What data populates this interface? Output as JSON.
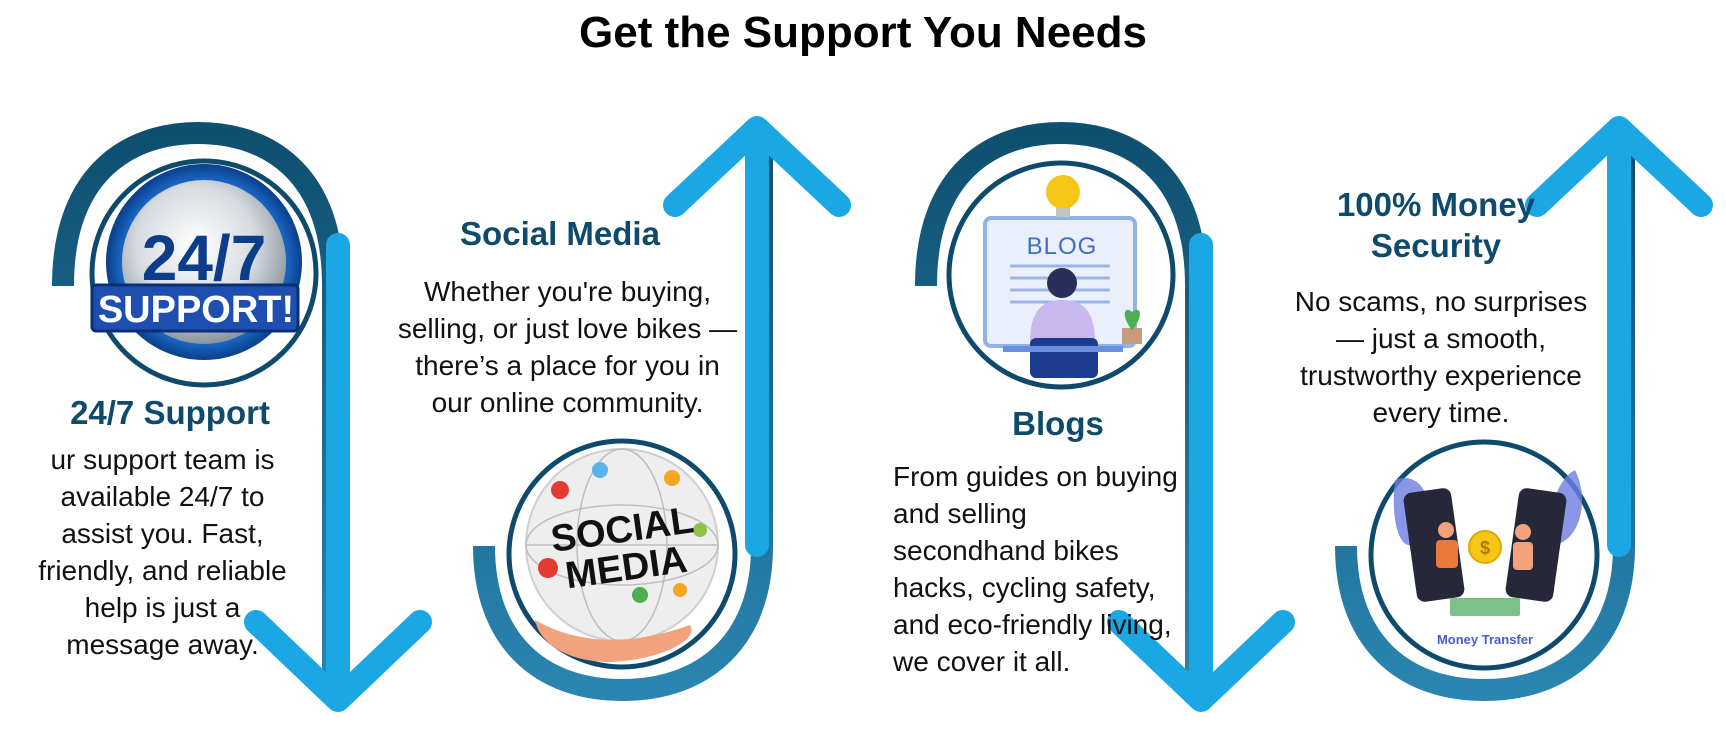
{
  "title": "Get the Support You Needs",
  "colors": {
    "dark_teal": "#175a80",
    "arrow_blue": "#1ba6e4",
    "heading": "#0e4a6c"
  },
  "features": [
    {
      "heading": "24/7 Support",
      "description": "ur support team is available 24/7 to assist you. Fast, friendly, and reliable help is just a message away.",
      "image": {
        "name": "support-24-7-badge",
        "lines": [
          "24/7",
          "SUPPORT!"
        ]
      }
    },
    {
      "heading": "Social Media",
      "description": "Whether you're buying, selling, or just love bikes — there’s a place for you in our online community.",
      "image": {
        "name": "social-media-globe",
        "lines": [
          "SOCIAL",
          "MEDIA"
        ]
      }
    },
    {
      "heading": "Blogs",
      "description": "From guides on buying and selling secondhand bikes hacks, cycling safety, and eco-friendly living, we cover it all.",
      "image": {
        "name": "blog-illustration",
        "lines": [
          "BLOG"
        ]
      }
    },
    {
      "heading": "100% Money Security",
      "description": "No scams, no surprises — just a smooth, trustworthy experience every time.",
      "image": {
        "name": "money-transfer-illustration",
        "lines": [
          "Money Transfer"
        ]
      }
    }
  ]
}
